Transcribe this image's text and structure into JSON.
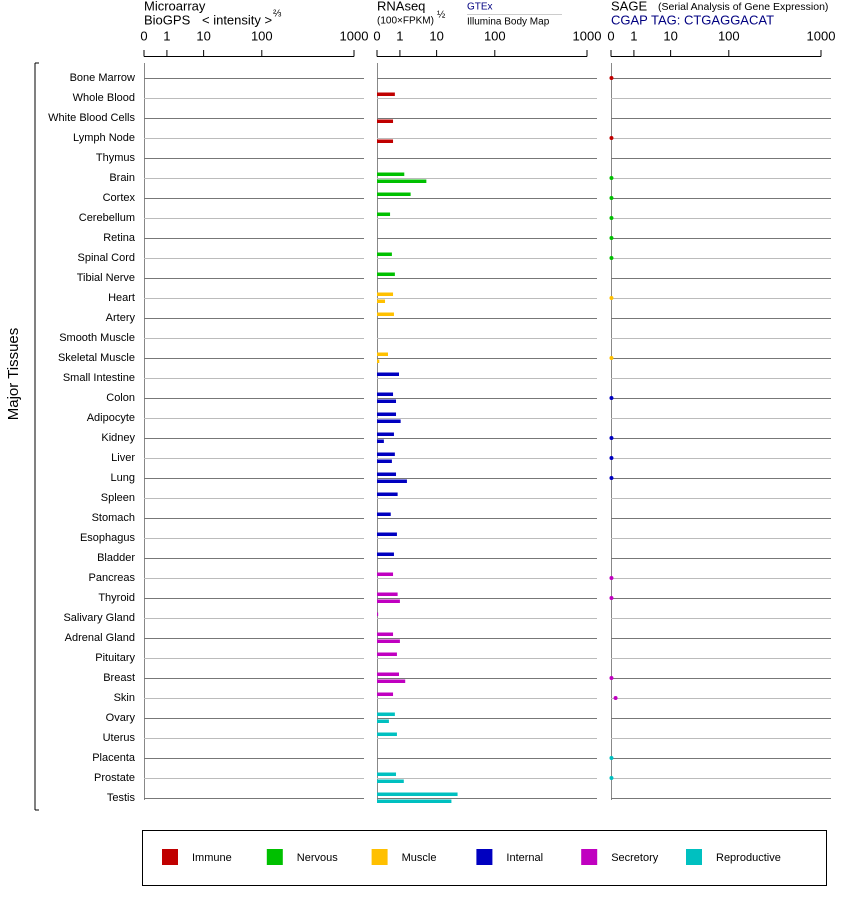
{
  "chart_data": {
    "type": "bar",
    "orientation": "horizontal",
    "ylabel": "Major Tissues",
    "categories": [
      "Bone Marrow",
      "Whole Blood",
      "White Blood Cells",
      "Lymph Node",
      "Thymus",
      "Brain",
      "Cortex",
      "Cerebellum",
      "Retina",
      "Spinal Cord",
      "Tibial Nerve",
      "Heart",
      "Artery",
      "Smooth Muscle",
      "Skeletal Muscle",
      "Small Intestine",
      "Colon",
      "Adipocyte",
      "Kidney",
      "Liver",
      "Lung",
      "Spleen",
      "Stomach",
      "Esophagus",
      "Bladder",
      "Pancreas",
      "Thyroid",
      "Salivary Gland",
      "Adrenal Gland",
      "Pituitary",
      "Breast",
      "Skin",
      "Ovary",
      "Uterus",
      "Placenta",
      "Prostate",
      "Testis"
    ],
    "category_groups": [
      0,
      0,
      0,
      0,
      0,
      1,
      1,
      1,
      1,
      1,
      1,
      2,
      2,
      2,
      2,
      3,
      3,
      3,
      3,
      3,
      3,
      3,
      3,
      3,
      3,
      4,
      4,
      4,
      4,
      4,
      4,
      4,
      5,
      5,
      5,
      5,
      5
    ],
    "groups": [
      {
        "name": "Immune",
        "color": "#c00000"
      },
      {
        "name": "Nervous",
        "color": "#00c000"
      },
      {
        "name": "Muscle",
        "color": "#ffc000"
      },
      {
        "name": "Internal",
        "color": "#0000c0"
      },
      {
        "name": "Secretory",
        "color": "#c000c0"
      },
      {
        "name": "Reproductive",
        "color": "#00c0c0"
      }
    ],
    "panels": [
      {
        "title": "Microarray",
        "subtitle": "BioGPS",
        "axis_label": "< intensity >",
        "axis_exponent": "⅔",
        "xlim": [
          0,
          1000
        ],
        "xticks": [
          0,
          1,
          10,
          100,
          1000
        ],
        "series": []
      },
      {
        "title": "RNAseq",
        "axis_label": "(100×FPKM)",
        "axis_exponent": "½",
        "xlim": [
          0,
          1000
        ],
        "xticks": [
          0,
          1,
          10,
          100,
          1000
        ],
        "marker": "bar",
        "series": [
          {
            "name": "GTEx",
            "values": [
              null,
              0.78,
              null,
              null,
              null,
              1.4,
              2.2,
              0.57,
              null,
              0.65,
              0.78,
              0.7,
              0.74,
              null,
              0.48,
              0.96,
              0.7,
              0.83,
              0.74,
              0.78,
              0.83,
              0.9,
              0.6,
              0.87,
              0.74,
              0.7,
              0.9,
              0.05,
              0.7,
              0.87,
              0.96,
              0.7,
              0.78,
              0.87,
              null,
              0.83,
              26
            ]
          },
          {
            "name": "Illumina Body Map",
            "values": [
              null,
              null,
              0.7,
              0.7,
              null,
              5.8,
              null,
              null,
              null,
              null,
              null,
              0.35,
              null,
              null,
              0.1,
              null,
              0.83,
              1.06,
              0.3,
              0.65,
              1.7,
              null,
              null,
              null,
              null,
              null,
              1.0,
              null,
              1.0,
              null,
              1.5,
              null,
              0.52,
              null,
              null,
              1.35,
              20
            ]
          }
        ]
      },
      {
        "title": "SAGE",
        "subtitle": "(Serial Analysis of Gene Expression)",
        "tag": "CGAP TAG: CTGAGGACAT",
        "xlim": [
          0,
          1000
        ],
        "xticks": [
          0,
          1,
          10,
          100,
          1000
        ],
        "marker": "dot",
        "series": [
          {
            "values": [
              0.02,
              null,
              null,
              0.02,
              null,
              0.02,
              0.02,
              0.02,
              0.02,
              0.02,
              null,
              0.02,
              null,
              null,
              0.02,
              null,
              0.02,
              null,
              0.02,
              0.02,
              0.02,
              null,
              null,
              null,
              null,
              0.02,
              0.02,
              null,
              null,
              null,
              0.02,
              0.2,
              null,
              null,
              0.02,
              0.02,
              null
            ]
          }
        ]
      }
    ]
  }
}
